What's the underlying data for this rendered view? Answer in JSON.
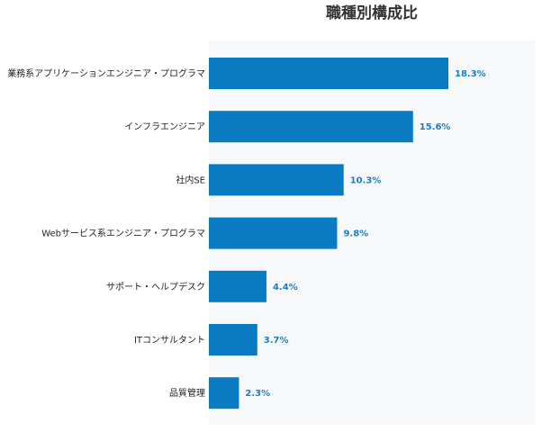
{
  "chart_data": {
    "type": "bar",
    "orientation": "horizontal",
    "title": "職種別構成比",
    "categories": [
      "業務系アプリケーションエンジニア・プログラマ",
      "インフラエンジニア",
      "社内SE",
      "Webサービス系エンジニア・プログラマ",
      "サポート・ヘルプデスク",
      "ITコンサルタント",
      "品質管理"
    ],
    "values": [
      18.3,
      15.6,
      10.3,
      9.8,
      4.4,
      3.7,
      2.3
    ],
    "value_labels": [
      "18.3%",
      "15.6%",
      "10.3%",
      "9.8%",
      "4.4%",
      "3.7%",
      "2.3%"
    ],
    "xlim": [
      0,
      25
    ],
    "grid": false,
    "colors": {
      "bar": "#0a7bc3",
      "value_label": "#1a7fc1",
      "plot_background": "#f6f8fa"
    }
  }
}
